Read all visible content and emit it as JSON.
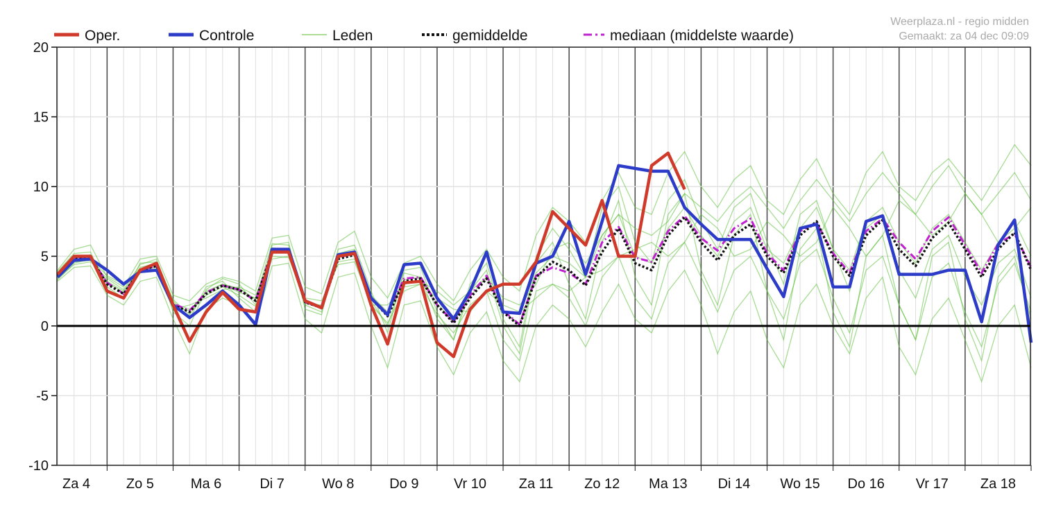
{
  "source": {
    "line1": "Weerplaza.nl - regio midden",
    "line2": "Gemaakt: za 04 dec 09:09"
  },
  "legend": [
    {
      "label": "Oper.",
      "color": "#d03a2a",
      "style": "solid"
    },
    {
      "label": "Controle",
      "color": "#2c3cc8",
      "style": "solid"
    },
    {
      "label": "Leden",
      "color": "#5cbf3a",
      "style": "thin"
    },
    {
      "label": "gemiddelde",
      "color": "#111111",
      "style": "dotted"
    },
    {
      "label": "mediaan (middelste waarde)",
      "color": "#c020d0",
      "style": "dashdot"
    }
  ],
  "chart_data": {
    "type": "line",
    "title": "",
    "xlabel": "",
    "ylabel": "",
    "ylim": [
      -10,
      20
    ],
    "yticks": [
      20,
      15,
      10,
      5,
      0,
      -5,
      -10
    ],
    "x_step_hours": 6,
    "x_start": "Za 4 06:00",
    "days": [
      "Za 4",
      "Zo 5",
      "Ma 6",
      "Di 7",
      "Wo 8",
      "Do 9",
      "Vr 10",
      "Za 11",
      "Zo 12",
      "Ma 13",
      "Di 14",
      "Wo 15",
      "Do 16",
      "Vr 17",
      "Za 18"
    ],
    "grid": true,
    "legend_position": "top",
    "series": [
      {
        "name": "Oper.",
        "values": [
          3.7,
          5.0,
          5.0,
          2.5,
          2.0,
          4.0,
          4.5,
          1.5,
          -1.1,
          1.0,
          2.4,
          1.2,
          1.0,
          5.3,
          5.3,
          1.8,
          1.3,
          5.0,
          5.2,
          1.5,
          -1.3,
          3.1,
          3.2,
          -1.2,
          -2.2,
          1.2,
          2.5,
          3.0,
          3.0,
          4.6,
          8.2,
          7.0,
          5.8,
          9.0,
          5.0,
          5.0,
          11.5,
          12.4,
          9.8
        ]
      },
      {
        "name": "Controle",
        "values": [
          3.5,
          4.7,
          4.8,
          4.0,
          3.0,
          3.9,
          4.0,
          1.5,
          0.6,
          1.5,
          2.5,
          1.5,
          0.1,
          5.5,
          5.5,
          1.8,
          1.3,
          5.1,
          5.3,
          2.0,
          0.8,
          4.4,
          4.5,
          2.0,
          0.5,
          2.5,
          5.3,
          1.0,
          0.9,
          4.5,
          5.0,
          7.5,
          3.7,
          7.5,
          11.5,
          11.3,
          11.1,
          11.1,
          8.5,
          7.3,
          6.2,
          6.2,
          6.2,
          4.1,
          2.1,
          7.0,
          7.3,
          2.8,
          2.8,
          7.5,
          7.9,
          3.7,
          3.7,
          3.7,
          4.0,
          4.0,
          0.3,
          5.8,
          7.6,
          -1.2
        ]
      },
      {
        "name": "gemiddelde",
        "values": [
          3.6,
          4.8,
          4.9,
          3.0,
          2.3,
          4.0,
          4.3,
          1.5,
          1.0,
          2.3,
          2.9,
          2.6,
          1.8,
          5.3,
          5.3,
          1.7,
          1.3,
          4.8,
          5.1,
          2.0,
          0.7,
          3.2,
          3.4,
          1.5,
          0.2,
          2.0,
          3.4,
          1.0,
          0.0,
          3.5,
          4.6,
          4.0,
          2.9,
          5.3,
          7.0,
          4.5,
          4.0,
          6.5,
          7.8,
          6.0,
          4.7,
          6.5,
          7.3,
          5.0,
          3.8,
          6.5,
          7.5,
          5.0,
          3.6,
          6.5,
          7.6,
          5.5,
          4.3,
          6.3,
          7.4,
          5.5,
          3.5,
          5.5,
          6.7,
          4.0
        ]
      },
      {
        "name": "mediaan",
        "values": [
          3.6,
          4.8,
          4.9,
          3.1,
          2.3,
          4.0,
          4.3,
          1.6,
          1.1,
          2.4,
          2.9,
          2.6,
          1.8,
          5.4,
          5.4,
          1.7,
          1.3,
          4.9,
          5.2,
          2.0,
          0.9,
          3.4,
          3.5,
          1.5,
          0.3,
          2.2,
          3.6,
          1.1,
          0.1,
          3.6,
          4.2,
          3.8,
          3.0,
          6.0,
          7.1,
          4.9,
          4.6,
          6.8,
          7.9,
          6.3,
          5.4,
          7.0,
          7.7,
          5.2,
          4.0,
          6.8,
          7.4,
          5.2,
          3.8,
          6.8,
          7.7,
          6.0,
          4.8,
          6.8,
          7.8,
          5.8,
          3.8,
          5.9,
          6.6,
          4.2
        ]
      },
      {
        "name": "Leden",
        "members": [
          [
            4.0,
            5.5,
            5.8,
            3.5,
            2.8,
            4.8,
            5.0,
            2.2,
            1.8,
            3.0,
            3.5,
            3.2,
            2.5,
            6.3,
            6.5,
            2.8,
            2.3,
            6.0,
            6.8,
            3.5,
            2.0,
            4.5,
            5.0,
            3.0,
            1.8,
            4.0,
            5.5,
            3.5,
            2.5,
            6.5,
            8.5,
            7.5,
            6.0,
            9.0,
            11.0,
            8.5,
            8.0,
            11.0,
            12.5,
            10.0,
            8.5,
            10.5,
            11.5,
            9.0,
            8.0,
            10.5,
            12.0,
            9.5,
            8.0,
            11.0,
            12.5,
            10.0,
            9.0,
            11.0,
            12.0,
            10.5,
            9.0,
            11.0,
            13.0,
            11.5
          ],
          [
            3.2,
            4.2,
            4.3,
            2.2,
            1.5,
            3.2,
            3.5,
            0.5,
            -2.0,
            1.2,
            2.0,
            1.5,
            0.2,
            4.3,
            4.5,
            0.5,
            -0.5,
            3.5,
            3.8,
            0.0,
            -3.0,
            1.5,
            1.8,
            -1.5,
            -3.5,
            -0.5,
            1.0,
            -2.5,
            -4.0,
            0.0,
            1.5,
            0.5,
            -1.5,
            1.0,
            3.0,
            0.5,
            -0.5,
            2.5,
            4.0,
            1.5,
            -2.0,
            1.0,
            2.5,
            -1.0,
            -3.0,
            1.5,
            3.0,
            0.0,
            -2.0,
            2.0,
            3.5,
            -1.5,
            -3.5,
            0.5,
            2.0,
            -1.0,
            -4.0,
            0.0,
            1.5,
            -3.0
          ],
          [
            3.5,
            4.6,
            4.7,
            3.2,
            2.5,
            4.2,
            4.5,
            1.8,
            0.5,
            2.8,
            3.2,
            2.0,
            1.0,
            5.8,
            6.0,
            1.2,
            0.8,
            5.5,
            5.8,
            2.5,
            -0.5,
            4.0,
            4.2,
            1.0,
            -1.0,
            3.0,
            4.5,
            0.5,
            -1.5,
            5.0,
            7.0,
            5.5,
            3.5,
            8.5,
            10.0,
            6.0,
            4.5,
            9.0,
            10.5,
            7.5,
            5.5,
            8.5,
            9.5,
            6.0,
            3.0,
            8.0,
            9.0,
            5.5,
            2.5,
            7.0,
            8.0,
            4.0,
            2.0,
            5.5,
            6.5,
            3.5,
            1.5,
            4.5,
            5.5,
            2.0
          ],
          [
            3.8,
            5.0,
            5.0,
            2.8,
            2.0,
            3.8,
            4.0,
            1.2,
            1.5,
            2.0,
            2.6,
            2.8,
            2.2,
            5.0,
            4.9,
            2.0,
            1.8,
            4.4,
            4.6,
            1.5,
            1.5,
            2.8,
            3.0,
            2.0,
            1.2,
            1.0,
            2.5,
            1.5,
            1.0,
            2.0,
            3.0,
            2.5,
            3.5,
            4.0,
            5.0,
            5.5,
            6.0,
            5.0,
            6.0,
            8.0,
            7.0,
            5.0,
            5.5,
            7.5,
            6.5,
            5.0,
            6.0,
            8.5,
            7.0,
            5.0,
            6.5,
            9.0,
            8.0,
            6.5,
            7.5,
            9.5,
            8.0,
            6.0,
            7.0,
            8.5
          ],
          [
            3.4,
            4.4,
            4.6,
            3.4,
            2.6,
            4.4,
            4.8,
            1.0,
            0.0,
            2.6,
            3.4,
            3.0,
            1.5,
            5.6,
            5.5,
            1.5,
            1.0,
            5.2,
            5.5,
            1.8,
            0.0,
            3.8,
            3.5,
            0.5,
            -1.0,
            2.5,
            4.0,
            0.0,
            -2.0,
            4.5,
            6.0,
            3.0,
            0.5,
            6.0,
            9.0,
            3.5,
            1.5,
            8.0,
            9.5,
            4.0,
            1.5,
            6.5,
            8.0,
            2.5,
            -1.0,
            5.5,
            7.0,
            1.0,
            -1.5,
            5.0,
            6.5,
            1.5,
            -1.0,
            5.0,
            6.0,
            0.5,
            -2.5,
            3.5,
            5.0,
            0.5
          ],
          [
            3.9,
            5.2,
            5.3,
            2.6,
            2.0,
            4.5,
            4.6,
            1.9,
            0.8,
            2.5,
            3.0,
            2.4,
            2.0,
            5.9,
            5.8,
            1.6,
            1.5,
            5.0,
            5.4,
            2.2,
            1.0,
            3.0,
            3.2,
            2.5,
            1.5,
            2.5,
            3.5,
            2.0,
            1.5,
            3.0,
            5.5,
            6.0,
            4.5,
            6.5,
            8.0,
            7.0,
            6.5,
            7.5,
            9.5,
            8.5,
            7.5,
            9.0,
            10.0,
            8.5,
            7.0,
            9.0,
            10.5,
            9.0,
            7.5,
            9.5,
            11.0,
            9.5,
            8.0,
            10.0,
            11.5,
            9.5,
            8.0,
            9.5,
            11.0,
            9.0
          ],
          [
            3.3,
            4.5,
            4.8,
            3.6,
            3.0,
            4.0,
            4.2,
            1.6,
            1.2,
            2.2,
            2.8,
            2.2,
            1.4,
            4.8,
            5.0,
            1.9,
            1.2,
            4.6,
            4.8,
            1.5,
            0.2,
            2.5,
            3.0,
            0.8,
            -0.5,
            1.5,
            2.5,
            -1.0,
            -2.5,
            2.5,
            3.0,
            2.0,
            0.0,
            3.5,
            5.0,
            2.0,
            0.5,
            4.5,
            6.0,
            3.5,
            1.0,
            4.0,
            5.0,
            2.5,
            0.5,
            4.5,
            5.5,
            2.0,
            -0.5,
            4.0,
            5.0,
            1.5,
            -1.0,
            3.5,
            4.5,
            1.0,
            -1.5,
            3.0,
            4.5,
            1.0
          ],
          [
            3.7,
            4.9,
            5.1,
            3.1,
            2.4,
            4.1,
            4.4,
            1.4,
            1.1,
            2.4,
            3.0,
            2.7,
            1.9,
            5.4,
            5.4,
            1.8,
            1.4,
            4.9,
            5.2,
            2.1,
            0.8,
            3.3,
            3.5,
            1.6,
            0.3,
            2.1,
            3.5,
            1.1,
            0.1,
            3.8,
            5.0,
            4.5,
            3.5,
            6.5,
            8.0,
            5.0,
            4.5,
            7.0,
            8.5,
            6.5,
            5.0,
            7.5,
            8.5,
            5.5,
            4.5,
            7.0,
            8.5,
            5.5,
            4.0,
            7.5,
            8.5,
            6.0,
            4.5,
            7.0,
            8.0,
            6.0,
            4.0,
            6.0,
            7.5,
            5.0
          ]
        ]
      }
    ]
  }
}
